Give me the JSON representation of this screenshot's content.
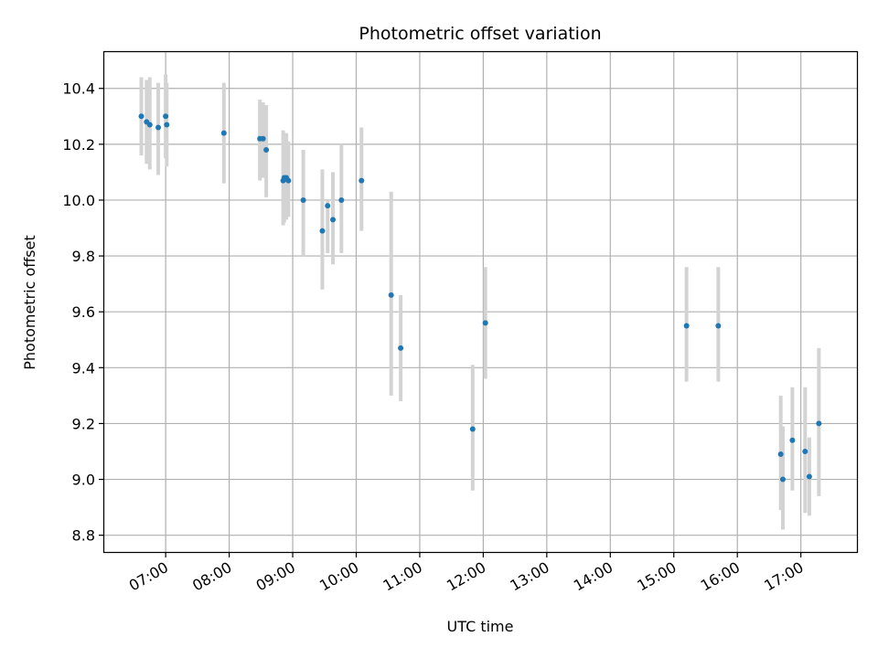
{
  "chart_data": {
    "type": "scatter",
    "title": "Photometric offset variation",
    "xlabel": "UTC time",
    "ylabel": "Photometric offset",
    "x_tick_labels": [
      "07:00",
      "08:00",
      "09:00",
      "10:00",
      "11:00",
      "12:00",
      "13:00",
      "14:00",
      "15:00",
      "16:00",
      "17:00"
    ],
    "y_tick_labels": [
      "8.8",
      "9.0",
      "9.2",
      "9.4",
      "9.6",
      "9.8",
      "10.0",
      "10.2",
      "10.4"
    ],
    "y_ticks": [
      8.8,
      9.0,
      9.2,
      9.4,
      9.6,
      9.8,
      10.0,
      10.2,
      10.4
    ],
    "xlim": [
      "06:02",
      "17:53"
    ],
    "ylim": [
      8.74,
      10.53
    ],
    "grid": true,
    "point_color": "#1f77b4",
    "errorbar_color": "#d3d3d3",
    "points": [
      {
        "x": "06:37",
        "y": 10.3,
        "ylo": 10.16,
        "yhi": 10.44
      },
      {
        "x": "06:42",
        "y": 10.28,
        "ylo": 10.13,
        "yhi": 10.43
      },
      {
        "x": "06:45",
        "y": 10.27,
        "ylo": 10.11,
        "yhi": 10.44
      },
      {
        "x": "06:53",
        "y": 10.26,
        "ylo": 10.09,
        "yhi": 10.42
      },
      {
        "x": "07:00",
        "y": 10.3,
        "ylo": 10.15,
        "yhi": 10.45
      },
      {
        "x": "07:01",
        "y": 10.27,
        "ylo": 10.12,
        "yhi": 10.42
      },
      {
        "x": "07:55",
        "y": 10.24,
        "ylo": 10.06,
        "yhi": 10.42
      },
      {
        "x": "08:29",
        "y": 10.22,
        "ylo": 10.07,
        "yhi": 10.36
      },
      {
        "x": "08:32",
        "y": 10.22,
        "ylo": 10.08,
        "yhi": 10.35
      },
      {
        "x": "08:35",
        "y": 10.18,
        "ylo": 10.01,
        "yhi": 10.34
      },
      {
        "x": "08:51",
        "y": 10.07,
        "ylo": 9.91,
        "yhi": 10.25
      },
      {
        "x": "08:52",
        "y": 10.08,
        "ylo": 9.92,
        "yhi": 10.24
      },
      {
        "x": "08:54",
        "y": 10.08,
        "ylo": 9.93,
        "yhi": 10.24
      },
      {
        "x": "08:56",
        "y": 10.07,
        "ylo": 9.94,
        "yhi": 10.21
      },
      {
        "x": "09:10",
        "y": 10.0,
        "ylo": 9.8,
        "yhi": 10.18
      },
      {
        "x": "09:28",
        "y": 9.89,
        "ylo": 9.68,
        "yhi": 10.11
      },
      {
        "x": "09:33",
        "y": 9.98,
        "ylo": 9.81,
        "yhi": 10.0
      },
      {
        "x": "09:38",
        "y": 9.93,
        "ylo": 9.77,
        "yhi": 10.1
      },
      {
        "x": "09:46",
        "y": 10.0,
        "ylo": 9.81,
        "yhi": 10.2
      },
      {
        "x": "10:05",
        "y": 10.07,
        "ylo": 9.89,
        "yhi": 10.26
      },
      {
        "x": "10:33",
        "y": 9.66,
        "ylo": 9.3,
        "yhi": 10.03
      },
      {
        "x": "10:42",
        "y": 9.47,
        "ylo": 9.28,
        "yhi": 9.66
      },
      {
        "x": "11:50",
        "y": 9.18,
        "ylo": 8.96,
        "yhi": 9.41
      },
      {
        "x": "12:02",
        "y": 9.56,
        "ylo": 9.36,
        "yhi": 9.76
      },
      {
        "x": "15:12",
        "y": 9.55,
        "ylo": 9.35,
        "yhi": 9.76
      },
      {
        "x": "15:42",
        "y": 9.55,
        "ylo": 9.35,
        "yhi": 9.76
      },
      {
        "x": "16:41",
        "y": 9.09,
        "ylo": 8.89,
        "yhi": 9.3
      },
      {
        "x": "16:43",
        "y": 9.0,
        "ylo": 8.82,
        "yhi": 9.19
      },
      {
        "x": "16:52",
        "y": 9.14,
        "ylo": 8.96,
        "yhi": 9.33
      },
      {
        "x": "17:04",
        "y": 9.1,
        "ylo": 8.88,
        "yhi": 9.33
      },
      {
        "x": "17:08",
        "y": 9.01,
        "ylo": 8.87,
        "yhi": 9.15
      },
      {
        "x": "17:17",
        "y": 9.2,
        "ylo": 8.94,
        "yhi": 9.47
      }
    ]
  }
}
